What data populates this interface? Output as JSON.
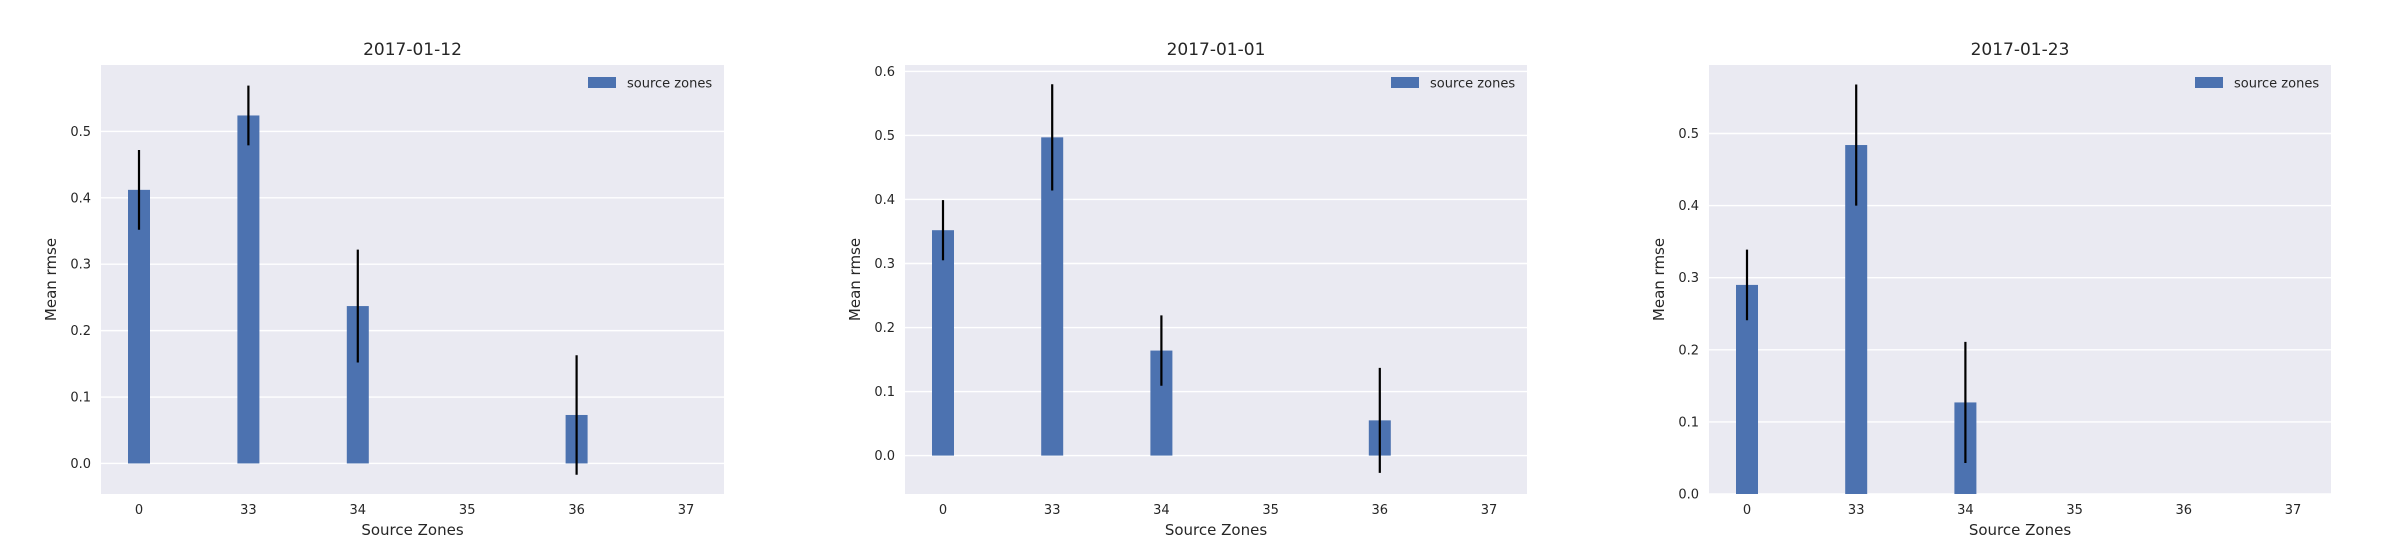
{
  "chart_data": [
    {
      "type": "bar",
      "title": "2017-01-12",
      "xlabel": "Source Zones",
      "ylabel": "Mean rmse",
      "categories": [
        "0",
        "33",
        "34",
        "35",
        "36",
        "37"
      ],
      "series": [
        {
          "name": "source zones",
          "values": [
            0.412,
            0.524,
            0.237,
            null,
            0.073,
            null
          ],
          "error": [
            0.06,
            0.045,
            0.085,
            null,
            0.09,
            null
          ]
        }
      ],
      "ylim": [
        -0.046,
        0.6
      ],
      "yticks": [
        0.0,
        0.1,
        0.2,
        0.3,
        0.4,
        0.5
      ],
      "ytick_labels": [
        "0.0",
        "0.1",
        "0.2",
        "0.3",
        "0.4",
        "0.5"
      ],
      "grid": true,
      "legend": "top-right",
      "bar_color": "#4c72b0",
      "error_color": "#000000",
      "background": "#eaeaf2"
    },
    {
      "type": "bar",
      "title": "2017-01-01",
      "xlabel": "Source Zones",
      "ylabel": "Mean rmse",
      "categories": [
        "0",
        "33",
        "34",
        "35",
        "36",
        "37"
      ],
      "series": [
        {
          "name": "source zones",
          "values": [
            0.352,
            0.497,
            0.164,
            null,
            0.055,
            null
          ],
          "error": [
            0.047,
            0.083,
            0.055,
            null,
            0.082,
            null
          ]
        }
      ],
      "ylim": [
        -0.06,
        0.61
      ],
      "yticks": [
        0.0,
        0.1,
        0.2,
        0.3,
        0.4,
        0.5,
        0.6
      ],
      "ytick_labels": [
        "0.0",
        "0.1",
        "0.2",
        "0.3",
        "0.4",
        "0.5",
        "0.6"
      ],
      "grid": true,
      "legend": "top-right",
      "bar_color": "#4c72b0",
      "error_color": "#000000",
      "background": "#eaeaf2"
    },
    {
      "type": "bar",
      "title": "2017-01-23",
      "xlabel": "Source Zones",
      "ylabel": "Mean rmse",
      "categories": [
        "0",
        "33",
        "34",
        "35",
        "36",
        "37"
      ],
      "series": [
        {
          "name": "source zones",
          "values": [
            0.29,
            0.484,
            0.127,
            null,
            null,
            null
          ],
          "error": [
            0.049,
            0.084,
            0.084,
            null,
            null,
            null
          ]
        }
      ],
      "ylim": [
        0.0,
        0.595
      ],
      "yticks": [
        0.0,
        0.1,
        0.2,
        0.3,
        0.4,
        0.5
      ],
      "ytick_labels": [
        "0.0",
        "0.1",
        "0.2",
        "0.3",
        "0.4",
        "0.5"
      ],
      "grid": true,
      "legend": "top-right",
      "bar_color": "#4c72b0",
      "error_color": "#000000",
      "background": "#eaeaf2"
    }
  ]
}
